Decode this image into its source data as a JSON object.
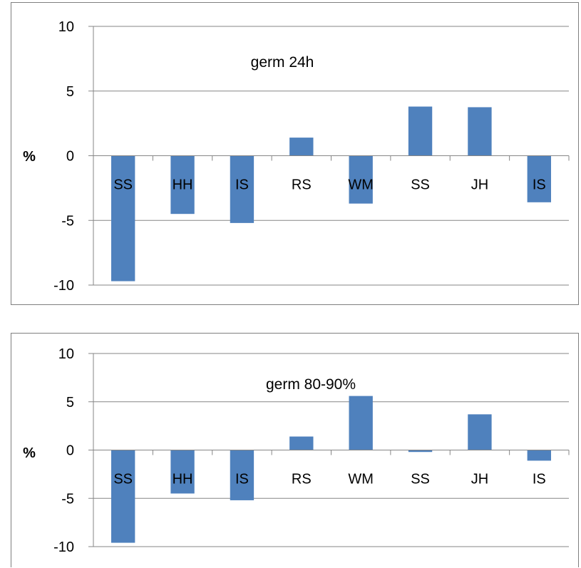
{
  "chart_data": [
    {
      "type": "bar",
      "title": "germ 24h",
      "ylabel": "%",
      "xlabel": "",
      "ylim": [
        -10,
        10
      ],
      "yticks": [
        10,
        5,
        0,
        -5,
        -10
      ],
      "grid": true,
      "categories": [
        "SS",
        "HH",
        "IS",
        "RS",
        "WM",
        "SS",
        "JH",
        "IS"
      ],
      "values": [
        -9.7,
        -4.5,
        -5.2,
        1.4,
        -3.7,
        3.8,
        3.75,
        -3.6
      ],
      "bar_color": "#4f81bd"
    },
    {
      "type": "bar",
      "title": "germ 80-90%",
      "ylabel": "%",
      "xlabel": "",
      "ylim": [
        -10,
        10
      ],
      "yticks": [
        10,
        5,
        0,
        -5,
        -10
      ],
      "grid": true,
      "categories": [
        "SS",
        "HH",
        "IS",
        "RS",
        "WM",
        "SS",
        "JH",
        "IS"
      ],
      "values": [
        -9.6,
        -4.5,
        -5.2,
        1.4,
        5.6,
        -0.2,
        3.7,
        -1.1
      ],
      "bar_color": "#4f81bd"
    }
  ]
}
